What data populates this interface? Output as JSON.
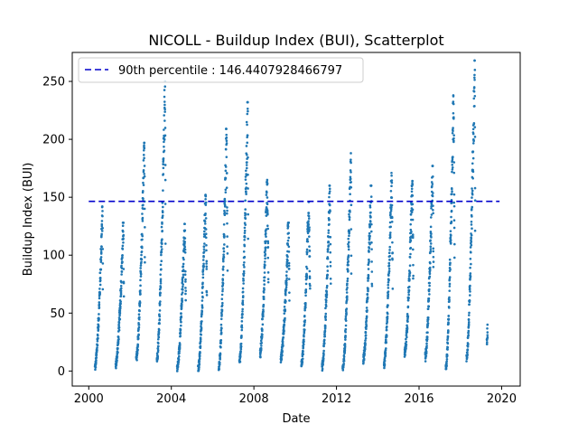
{
  "chart_data": {
    "type": "scatter",
    "title": "NICOLL - Buildup Index (BUI), Scatterplot",
    "xlabel": "Date",
    "ylabel": "Buildup Index (BUI)",
    "xlim": [
      1999.2,
      2020.9
    ],
    "ylim": [
      -13,
      275
    ],
    "xticks": [
      2000,
      2004,
      2008,
      2012,
      2016,
      2020
    ],
    "xtick_labels": [
      "2000",
      "2004",
      "2008",
      "2012",
      "2016",
      "2020"
    ],
    "yticks": [
      0,
      50,
      100,
      150,
      200,
      250
    ],
    "ytick_labels": [
      "0",
      "50",
      "100",
      "150",
      "200",
      "250"
    ],
    "grid": false,
    "legend_position": "upper-left",
    "reference_line": {
      "label": "90th percentile : 146.4407928466797",
      "value": 146.4407928466797,
      "x_range": [
        2000.0,
        2019.9
      ],
      "color": "#0000cc",
      "style": "dashed"
    },
    "point_color": "#1f77b4",
    "seasons": [
      {
        "x_start": 2000.3,
        "x_end": 2000.68,
        "y_start": 3,
        "y_peak": 142,
        "peak_at": 0.97
      },
      {
        "x_start": 2001.3,
        "x_end": 2001.7,
        "y_start": 5,
        "y_peak": 128,
        "peak_at": 0.95
      },
      {
        "x_start": 2002.3,
        "x_end": 2002.72,
        "y_start": 10,
        "y_peak": 197,
        "peak_at": 0.95
      },
      {
        "x_start": 2003.3,
        "x_end": 2003.72,
        "y_start": 10,
        "y_peak": 250,
        "peak_at": 0.95
      },
      {
        "x_start": 2004.28,
        "x_end": 2004.7,
        "y_start": 2,
        "y_peak": 127,
        "peak_at": 0.88
      },
      {
        "x_start": 2005.3,
        "x_end": 2005.72,
        "y_start": 2,
        "y_peak": 152,
        "peak_at": 0.86
      },
      {
        "x_start": 2006.3,
        "x_end": 2006.72,
        "y_start": 2,
        "y_peak": 209,
        "peak_at": 0.88
      },
      {
        "x_start": 2007.3,
        "x_end": 2007.72,
        "y_start": 8,
        "y_peak": 232,
        "peak_at": 0.95
      },
      {
        "x_start": 2008.3,
        "x_end": 2008.7,
        "y_start": 15,
        "y_peak": 165,
        "peak_at": 0.85
      },
      {
        "x_start": 2009.3,
        "x_end": 2009.72,
        "y_start": 10,
        "y_peak": 128,
        "peak_at": 0.9
      },
      {
        "x_start": 2010.3,
        "x_end": 2010.72,
        "y_start": 5,
        "y_peak": 146,
        "peak_at": 0.85
      },
      {
        "x_start": 2011.3,
        "x_end": 2011.72,
        "y_start": 3,
        "y_peak": 160,
        "peak_at": 0.9
      },
      {
        "x_start": 2012.3,
        "x_end": 2012.72,
        "y_start": 1,
        "y_peak": 188,
        "peak_at": 0.95
      },
      {
        "x_start": 2013.3,
        "x_end": 2013.72,
        "y_start": 10,
        "y_peak": 160,
        "peak_at": 0.9
      },
      {
        "x_start": 2014.3,
        "x_end": 2014.72,
        "y_start": 5,
        "y_peak": 171,
        "peak_at": 0.9
      },
      {
        "x_start": 2015.3,
        "x_end": 2015.72,
        "y_start": 15,
        "y_peak": 164,
        "peak_at": 0.9
      },
      {
        "x_start": 2016.3,
        "x_end": 2016.7,
        "y_start": 12,
        "y_peak": 177,
        "peak_at": 0.9
      },
      {
        "x_start": 2017.3,
        "x_end": 2017.72,
        "y_start": 2,
        "y_peak": 238,
        "peak_at": 0.88
      },
      {
        "x_start": 2018.3,
        "x_end": 2018.72,
        "y_start": 10,
        "y_peak": 268,
        "peak_at": 0.95
      },
      {
        "x_start": 2019.28,
        "x_end": 2019.32,
        "y_start": 26,
        "y_peak": 40,
        "peak_at": 0.9
      }
    ]
  }
}
